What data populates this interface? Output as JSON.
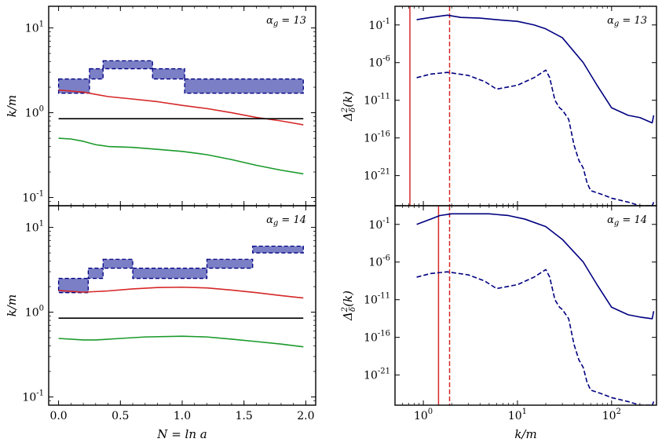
{
  "chart_data": [
    {
      "panel": "top-left",
      "type": "line",
      "xscale": "linear",
      "yscale": "log",
      "xlim": [
        -0.08,
        2.08
      ],
      "ylim": [
        0.08,
        18
      ],
      "xticks": [
        0.0,
        0.5,
        1.0,
        1.5,
        2.0
      ],
      "xtick_labels": [
        "",
        "",
        "",
        "",
        ""
      ],
      "yticks": [
        0.1,
        1,
        10
      ],
      "ytick_labels": [
        [
          "10",
          "-1"
        ],
        [
          "10",
          "0"
        ],
        [
          "10",
          "1"
        ]
      ],
      "xlabel": "",
      "ylabel": "k/m",
      "annotation": "α_g = 13",
      "series": [
        {
          "name": "red",
          "color": "#d62728",
          "style": "solid",
          "x": [
            0,
            0.2,
            0.4,
            0.6,
            0.8,
            1.0,
            1.2,
            1.4,
            1.6,
            1.8,
            1.98
          ],
          "y": [
            1.85,
            1.75,
            1.55,
            1.45,
            1.35,
            1.22,
            1.12,
            1.0,
            0.88,
            0.8,
            0.72
          ]
        },
        {
          "name": "black",
          "color": "#000000",
          "style": "solid",
          "x": [
            0,
            1.98
          ],
          "y": [
            0.85,
            0.85
          ]
        },
        {
          "name": "green",
          "color": "#1a9a2a",
          "style": "solid",
          "x": [
            0,
            0.1,
            0.2,
            0.3,
            0.4,
            0.6,
            0.8,
            1.0,
            1.2,
            1.4,
            1.6,
            1.8,
            1.98
          ],
          "y": [
            0.5,
            0.49,
            0.46,
            0.42,
            0.4,
            0.39,
            0.37,
            0.35,
            0.32,
            0.28,
            0.24,
            0.21,
            0.19
          ]
        }
      ],
      "bands": [
        {
          "x0": 0.0,
          "x1": 0.25,
          "lo": 1.7,
          "hi": 2.5
        },
        {
          "x0": 0.25,
          "x1": 0.36,
          "lo": 2.5,
          "hi": 3.3
        },
        {
          "x0": 0.36,
          "x1": 0.76,
          "lo": 3.3,
          "hi": 4.1
        },
        {
          "x0": 0.76,
          "x1": 1.02,
          "lo": 2.5,
          "hi": 3.3
        },
        {
          "x0": 1.02,
          "x1": 1.98,
          "lo": 1.7,
          "hi": 2.5
        }
      ]
    },
    {
      "panel": "bottom-left",
      "type": "line",
      "xscale": "linear",
      "yscale": "log",
      "xlim": [
        -0.08,
        2.08
      ],
      "ylim": [
        0.08,
        18
      ],
      "xticks": [
        0.0,
        0.5,
        1.0,
        1.5,
        2.0
      ],
      "xtick_labels": [
        "0.0",
        "0.5",
        "1.0",
        "1.5",
        "2.0"
      ],
      "yticks": [
        0.1,
        1,
        10
      ],
      "ytick_labels": [
        [
          "10",
          "-1"
        ],
        [
          "10",
          "0"
        ],
        [
          "10",
          "1"
        ]
      ],
      "xlabel": "N = ln a",
      "ylabel": "k/m",
      "annotation": "α_g = 14",
      "series": [
        {
          "name": "red",
          "color": "#d62728",
          "style": "solid",
          "x": [
            0,
            0.2,
            0.4,
            0.6,
            0.8,
            1.0,
            1.2,
            1.4,
            1.6,
            1.8,
            1.98
          ],
          "y": [
            1.8,
            1.72,
            1.78,
            1.88,
            1.95,
            1.97,
            1.93,
            1.82,
            1.7,
            1.57,
            1.47
          ]
        },
        {
          "name": "black",
          "color": "#000000",
          "style": "solid",
          "x": [
            0,
            1.98
          ],
          "y": [
            0.85,
            0.85
          ]
        },
        {
          "name": "green",
          "color": "#1a9a2a",
          "style": "solid",
          "x": [
            0,
            0.2,
            0.3,
            0.5,
            0.7,
            1.0,
            1.2,
            1.4,
            1.6,
            1.8,
            1.98
          ],
          "y": [
            0.49,
            0.47,
            0.47,
            0.49,
            0.51,
            0.52,
            0.51,
            0.48,
            0.45,
            0.42,
            0.39
          ]
        }
      ],
      "bands": [
        {
          "x0": 0.0,
          "x1": 0.24,
          "lo": 1.7,
          "hi": 2.5
        },
        {
          "x0": 0.24,
          "x1": 0.36,
          "lo": 2.5,
          "hi": 3.3
        },
        {
          "x0": 0.36,
          "x1": 0.6,
          "lo": 3.3,
          "hi": 4.2
        },
        {
          "x0": 0.6,
          "x1": 1.2,
          "lo": 2.5,
          "hi": 3.3
        },
        {
          "x0": 1.2,
          "x1": 1.57,
          "lo": 3.3,
          "hi": 4.2
        },
        {
          "x0": 1.57,
          "x1": 1.98,
          "lo": 5.0,
          "hi": 6.0
        }
      ]
    },
    {
      "panel": "top-right",
      "type": "line",
      "xscale": "log",
      "yscale": "log",
      "xlim": [
        0.5,
        300
      ],
      "ylim": [
        1e-25,
        30
      ],
      "xticks": [
        1,
        10,
        100
      ],
      "xtick_labels": [
        "",
        "",
        ""
      ],
      "yticks": [
        1e-21,
        1e-16,
        1e-11,
        1e-06,
        0.1
      ],
      "ytick_labels": [
        [
          "10",
          "-21"
        ],
        [
          "10",
          "-16"
        ],
        [
          "10",
          "-11"
        ],
        [
          "10",
          "-6"
        ],
        [
          "10",
          "-1"
        ]
      ],
      "xlabel": "",
      "ylabel": "Δ²_δ(k)",
      "annotation": "α_g = 13",
      "vlines": [
        {
          "x": 0.72,
          "color": "#d62728",
          "style": "solid"
        },
        {
          "x": 1.9,
          "color": "#d62728",
          "style": "dashed"
        }
      ],
      "series": [
        {
          "name": "solid",
          "color": "#000080",
          "style": "solid",
          "x": [
            0.85,
            1.2,
            1.8,
            2.5,
            4,
            6,
            10,
            15,
            20,
            30,
            50,
            70,
            100,
            150,
            200,
            270,
            280
          ],
          "y": [
            0.5,
            1.0,
            2.0,
            1.0,
            0.8,
            0.5,
            0.3,
            0.1,
            0.03,
            0.002,
            1e-06,
            1e-09,
            1e-12,
            1e-13,
            5e-14,
            1e-14,
            1e-13
          ]
        },
        {
          "name": "dashed",
          "color": "#000080",
          "style": "dashed",
          "x": [
            0.85,
            1.2,
            1.8,
            3,
            4.5,
            6,
            10,
            15,
            20,
            22,
            25,
            28,
            30,
            35,
            40,
            45,
            50,
            55,
            60,
            80,
            100,
            150,
            200,
            270,
            280
          ],
          "y": [
            1e-08,
            3e-08,
            5e-08,
            2e-08,
            3e-09,
            3e-10,
            1e-09,
            1e-08,
            1e-07,
            1e-08,
            1e-11,
            1e-12,
            5e-13,
            3e-14,
            1e-17,
            1e-19,
            1e-20,
            1e-22,
            1e-23,
            3e-24,
            1e-24,
            3e-25,
            1e-25,
            1e-25,
            3e-25
          ]
        }
      ]
    },
    {
      "panel": "bottom-right",
      "type": "line",
      "xscale": "log",
      "yscale": "log",
      "xlim": [
        0.5,
        300
      ],
      "ylim": [
        1e-25,
        30
      ],
      "xticks": [
        1,
        10,
        100
      ],
      "xtick_labels": [
        [
          "10",
          "0"
        ],
        [
          "10",
          "1"
        ],
        [
          "10",
          "2"
        ]
      ],
      "yticks": [
        1e-21,
        1e-16,
        1e-11,
        1e-06,
        0.1
      ],
      "ytick_labels": [
        [
          "10",
          "-21"
        ],
        [
          "10",
          "-16"
        ],
        [
          "10",
          "-11"
        ],
        [
          "10",
          "-6"
        ],
        [
          "10",
          "-1"
        ]
      ],
      "xlabel": "k/m",
      "ylabel": "Δ²_δ(k)",
      "annotation": "α_g = 14",
      "vlines": [
        {
          "x": 1.45,
          "color": "#d62728",
          "style": "solid"
        },
        {
          "x": 1.9,
          "color": "#d62728",
          "style": "dashed"
        }
      ],
      "series": [
        {
          "name": "solid",
          "color": "#000080",
          "style": "solid",
          "x": [
            0.85,
            1.2,
            1.5,
            2,
            3,
            5,
            8,
            12,
            20,
            30,
            50,
            70,
            100,
            150,
            200,
            270,
            280
          ],
          "y": [
            0.1,
            0.5,
            1.5,
            2.5,
            2.5,
            2.5,
            1.5,
            0.5,
            0.05,
            0.001,
            1e-06,
            1e-09,
            1e-12,
            1e-13,
            5e-14,
            3e-14,
            3e-13
          ]
        },
        {
          "name": "dashed",
          "color": "#000080",
          "style": "dashed",
          "x": [
            0.85,
            1.2,
            1.8,
            3,
            4.5,
            6,
            10,
            15,
            20,
            22,
            25,
            28,
            30,
            35,
            40,
            45,
            50,
            55,
            60,
            80,
            100,
            150,
            200,
            270,
            280
          ],
          "y": [
            1e-08,
            3e-08,
            5e-08,
            2e-08,
            3e-09,
            3e-10,
            1e-09,
            1e-08,
            1e-07,
            1e-08,
            1e-11,
            1e-12,
            5e-13,
            3e-14,
            1e-17,
            1e-19,
            1e-20,
            1e-22,
            1e-23,
            3e-24,
            1e-24,
            3e-25,
            1e-25,
            1e-25,
            3e-25
          ]
        }
      ]
    }
  ]
}
